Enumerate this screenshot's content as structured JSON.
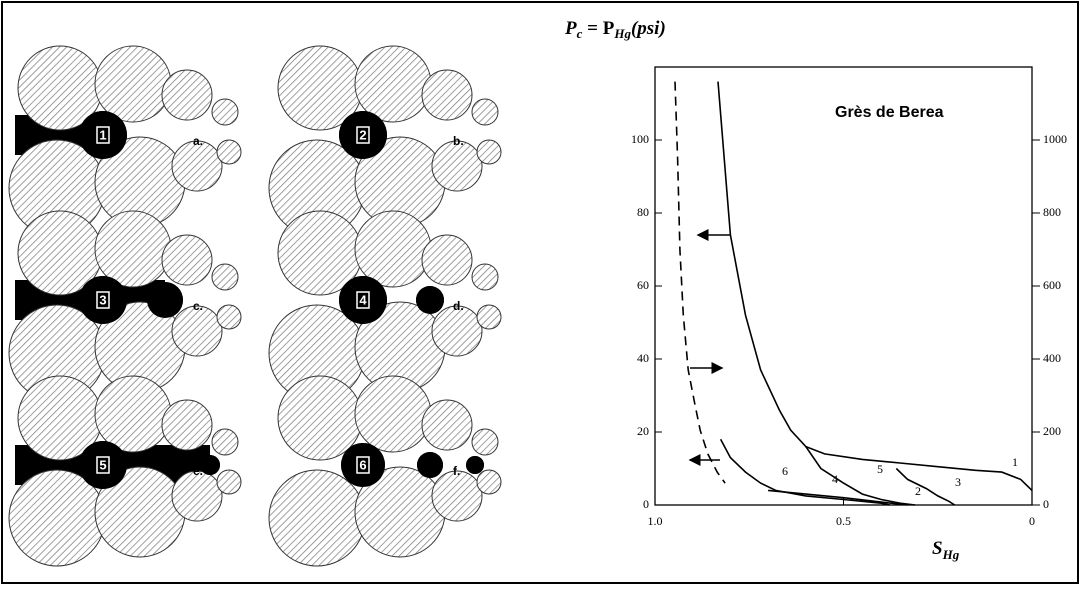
{
  "diagram": {
    "panels": [
      {
        "number": "1",
        "letter": "a."
      },
      {
        "number": "2",
        "letter": "b."
      },
      {
        "number": "3",
        "letter": "c."
      },
      {
        "number": "4",
        "letter": "d."
      },
      {
        "number": "5",
        "letter": "e."
      },
      {
        "number": "6",
        "letter": "f."
      }
    ]
  },
  "chart_data": {
    "type": "line",
    "title_parts": [
      "P",
      "c",
      " = P",
      "Hg",
      "(psi)"
    ],
    "x_label_parts": [
      "S",
      "Hg"
    ],
    "annotation": "Grès de Berea",
    "curve_labels": [
      "1",
      "2",
      "3",
      "4",
      "5",
      "6"
    ],
    "xlim": [
      1,
      0
    ],
    "xticks": [
      {
        "value": 1,
        "label": "1.0"
      },
      0.5,
      0
    ],
    "ylim": [
      0,
      120
    ],
    "yticks": [
      0,
      20,
      40,
      60,
      80,
      100
    ],
    "y2lim": [
      0,
      1200
    ],
    "y2ticks": [
      0,
      200,
      400,
      600,
      800,
      1000
    ],
    "series": [
      {
        "color": "#000000",
        "style": "solid",
        "x": [
          0.833,
          0.8,
          0.76,
          0.72,
          0.67,
          0.64,
          0.6,
          0.55,
          0.45,
          0.35,
          0.25,
          0.15,
          0.08,
          0.03,
          0
        ],
        "values": [
          116,
          74,
          52,
          37,
          26,
          20.5,
          16,
          14,
          12.5,
          11.5,
          10.5,
          9.5,
          9,
          7,
          4
        ]
      },
      {
        "color": "#000000",
        "style": "dashed",
        "x": [
          0.947,
          0.94,
          0.934,
          0.925,
          0.912,
          0.895,
          0.88,
          0.86,
          0.835,
          0.814
        ],
        "values": [
          116,
          95,
          70,
          52,
          37,
          28,
          20.5,
          14,
          9,
          6
        ]
      },
      {
        "color": "#000000",
        "style": "solid",
        "x": [
          0.826,
          0.8,
          0.76,
          0.72,
          0.68,
          0.6,
          0.5,
          0.4,
          0.377
        ],
        "values": [
          18,
          13,
          9,
          6,
          4,
          2.5,
          1.5,
          0.5,
          0
        ]
      },
      {
        "color": "#000000",
        "style": "solid",
        "x": [
          0.7,
          0.6,
          0.5,
          0.4,
          0.33
        ],
        "values": [
          4,
          3,
          2,
          0.8,
          0
        ]
      },
      {
        "color": "#000000",
        "style": "solid",
        "x": [
          0.6,
          0.56,
          0.5,
          0.45,
          0.4,
          0.35,
          0.31
        ],
        "values": [
          16,
          10,
          6,
          3,
          1.5,
          0.5,
          0
        ]
      },
      {
        "color": "#000000",
        "style": "solid",
        "x": [
          0.36,
          0.33,
          0.28,
          0.25,
          0.22,
          0.205
        ],
        "values": [
          10,
          7,
          4.5,
          2.5,
          1,
          0
        ]
      }
    ]
  }
}
